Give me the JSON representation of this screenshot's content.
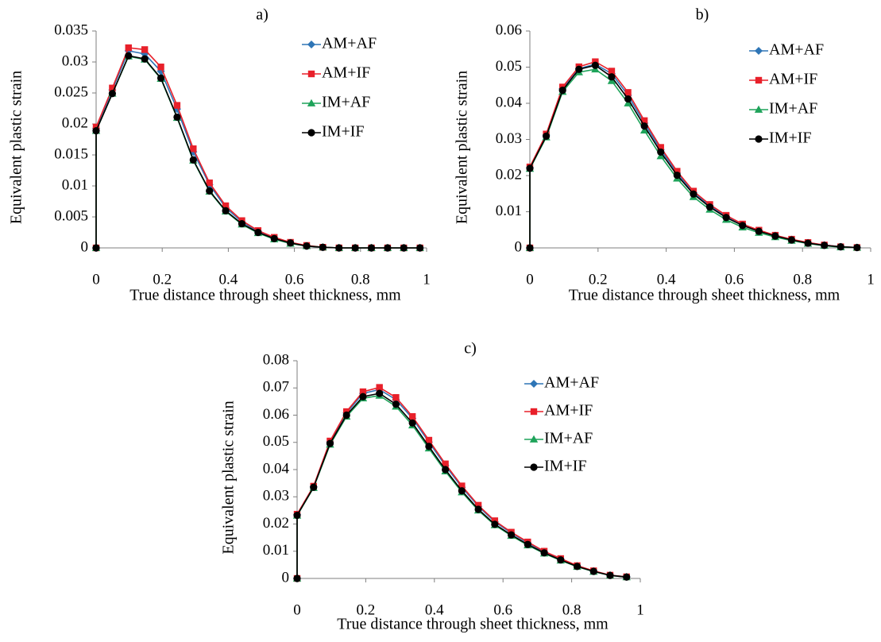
{
  "colors": {
    "AM+AF": "#2e75b6",
    "AM+IF": "#e8202a",
    "IM+AF": "#1ea35a",
    "IM+IF": "#000000"
  },
  "chart_data": [
    {
      "type": "line",
      "title": "a)",
      "xlabel": "True distance through sheet thickness, mm",
      "ylabel": "Equivalent plastic strain",
      "xlim": [
        0,
        1
      ],
      "ylim": [
        0,
        0.035
      ],
      "xticks": [
        "0",
        "0.2",
        "0.4",
        "0.6",
        "0.8",
        "1"
      ],
      "xtick_values": [
        0,
        0.2,
        0.4,
        0.6,
        0.8,
        1
      ],
      "yticks": [
        "0",
        "0.005",
        "0.01",
        "0.015",
        "0.02",
        "0.025",
        "0.03",
        "0.035"
      ],
      "ytick_values": [
        0,
        0.005,
        0.01,
        0.015,
        0.02,
        0.025,
        0.03,
        0.035
      ],
      "grid": false,
      "legend": "top-right",
      "x": [
        0,
        0,
        0.049,
        0.098,
        0.147,
        0.196,
        0.245,
        0.294,
        0.343,
        0.392,
        0.441,
        0.49,
        0.539,
        0.588,
        0.637,
        0.686,
        0.735,
        0.784,
        0.833,
        0.882,
        0.931,
        0.98
      ],
      "series": [
        {
          "name": "AM+AF",
          "marker": "diamond",
          "values": [
            0,
            0.0193,
            0.0255,
            0.0318,
            0.0313,
            0.0285,
            0.0224,
            0.0155,
            0.0102,
            0.0065,
            0.0042,
            0.0027,
            0.0016,
            0.0008,
            0.0003,
            0.0001,
            0,
            0,
            0,
            0,
            0,
            0
          ]
        },
        {
          "name": "AM+IF",
          "marker": "square",
          "values": [
            0,
            0.0195,
            0.0258,
            0.0323,
            0.032,
            0.0292,
            0.023,
            0.016,
            0.0105,
            0.0068,
            0.0044,
            0.0028,
            0.0017,
            0.0009,
            0.0004,
            0.0001,
            0,
            0,
            0,
            0,
            0,
            0
          ]
        },
        {
          "name": "IM+AF",
          "marker": "triangle",
          "values": [
            0,
            0.0189,
            0.0249,
            0.0309,
            0.0304,
            0.0273,
            0.021,
            0.0141,
            0.0091,
            0.0059,
            0.0038,
            0.0024,
            0.0014,
            0.0007,
            0.0003,
            0.0001,
            0,
            0,
            0,
            0,
            0,
            0
          ]
        },
        {
          "name": "IM+IF",
          "marker": "circle",
          "values": [
            0,
            0.0189,
            0.0249,
            0.031,
            0.0305,
            0.0274,
            0.0211,
            0.0142,
            0.0092,
            0.006,
            0.0039,
            0.0025,
            0.0015,
            0.0008,
            0.0003,
            0.0001,
            0,
            0,
            0,
            0,
            0,
            0
          ]
        }
      ]
    },
    {
      "type": "line",
      "title": "b)",
      "xlabel": "True distance through sheet thickness, mm",
      "ylabel": "Equivalent plastic strain",
      "xlim": [
        0,
        1
      ],
      "ylim": [
        0,
        0.06
      ],
      "xticks": [
        "0",
        "0.2",
        "0.4",
        "0.6",
        "0.8",
        "1"
      ],
      "xtick_values": [
        0,
        0.2,
        0.4,
        0.6,
        0.8,
        1
      ],
      "yticks": [
        "0",
        "0.01",
        "0.02",
        "0.03",
        "0.04",
        "0.05",
        "0.06"
      ],
      "ytick_values": [
        0,
        0.01,
        0.02,
        0.03,
        0.04,
        0.05,
        0.06
      ],
      "grid": false,
      "legend": "top-right",
      "x": [
        0,
        0,
        0.048,
        0.096,
        0.144,
        0.192,
        0.24,
        0.288,
        0.336,
        0.384,
        0.432,
        0.48,
        0.528,
        0.576,
        0.624,
        0.672,
        0.72,
        0.768,
        0.816,
        0.864,
        0.912,
        0.96
      ],
      "series": [
        {
          "name": "AM+AF",
          "marker": "diamond",
          "values": [
            0,
            0.0222,
            0.0312,
            0.044,
            0.0496,
            0.0508,
            0.0482,
            0.0422,
            0.0345,
            0.0272,
            0.0207,
            0.0153,
            0.0117,
            0.0087,
            0.0064,
            0.0047,
            0.0034,
            0.0023,
            0.0014,
            0.0008,
            0.0003,
            0.0001
          ]
        },
        {
          "name": "AM+IF",
          "marker": "square",
          "values": [
            0,
            0.0224,
            0.0315,
            0.0445,
            0.0501,
            0.0515,
            0.0489,
            0.043,
            0.0352,
            0.0278,
            0.0212,
            0.0157,
            0.012,
            0.009,
            0.0066,
            0.0049,
            0.0035,
            0.0024,
            0.0015,
            0.0008,
            0.0003,
            0.0001
          ]
        },
        {
          "name": "IM+AF",
          "marker": "triangle",
          "values": [
            0,
            0.0219,
            0.0306,
            0.0432,
            0.0486,
            0.0494,
            0.0462,
            0.04,
            0.0325,
            0.0254,
            0.0192,
            0.0141,
            0.0106,
            0.0078,
            0.0057,
            0.0042,
            0.003,
            0.002,
            0.0012,
            0.0006,
            0.0002,
            0.0001
          ]
        },
        {
          "name": "IM+IF",
          "marker": "circle",
          "values": [
            0,
            0.022,
            0.0309,
            0.0436,
            0.0494,
            0.0505,
            0.0473,
            0.0412,
            0.0337,
            0.0265,
            0.0201,
            0.0149,
            0.0113,
            0.0084,
            0.0062,
            0.0046,
            0.0033,
            0.0022,
            0.0013,
            0.0007,
            0.0003,
            0.0001
          ]
        }
      ]
    },
    {
      "type": "line",
      "title": "c)",
      "xlabel": "True distance through sheet thickness, mm",
      "ylabel": "Equivalent plastic strain",
      "xlim": [
        0,
        1
      ],
      "ylim": [
        0,
        0.08
      ],
      "xticks": [
        "0",
        "0.2",
        "0.4",
        "0.6",
        "0.8",
        "1"
      ],
      "xtick_values": [
        0,
        0.2,
        0.4,
        0.6,
        0.8,
        1
      ],
      "yticks": [
        "0",
        "0.01",
        "0.02",
        "0.03",
        "0.04",
        "0.05",
        "0.06",
        "0.07",
        "0.08"
      ],
      "ytick_values": [
        0,
        0.01,
        0.02,
        0.03,
        0.04,
        0.05,
        0.06,
        0.07,
        0.08
      ],
      "grid": false,
      "legend": "top-right",
      "x": [
        0,
        0,
        0.048,
        0.096,
        0.144,
        0.192,
        0.24,
        0.288,
        0.336,
        0.384,
        0.432,
        0.48,
        0.528,
        0.576,
        0.624,
        0.672,
        0.72,
        0.768,
        0.816,
        0.864,
        0.912,
        0.96
      ],
      "series": [
        {
          "name": "AM+AF",
          "marker": "diamond",
          "values": [
            0,
            0.0235,
            0.0337,
            0.0502,
            0.0608,
            0.068,
            0.0694,
            0.0657,
            0.0588,
            0.0501,
            0.0415,
            0.0335,
            0.0265,
            0.0208,
            0.0167,
            0.0131,
            0.0098,
            0.0071,
            0.0046,
            0.0027,
            0.0012,
            0.0006
          ]
        },
        {
          "name": "AM+IF",
          "marker": "square",
          "values": [
            0,
            0.0236,
            0.0339,
            0.0505,
            0.0613,
            0.0686,
            0.0702,
            0.0665,
            0.0595,
            0.0508,
            0.0421,
            0.034,
            0.0269,
            0.0212,
            0.017,
            0.0134,
            0.01,
            0.0073,
            0.0047,
            0.0028,
            0.0012,
            0.0006
          ]
        },
        {
          "name": "IM+AF",
          "marker": "triangle",
          "values": [
            0,
            0.0231,
            0.0333,
            0.0492,
            0.0595,
            0.0662,
            0.0672,
            0.0632,
            0.0563,
            0.0478,
            0.0394,
            0.0317,
            0.025,
            0.0196,
            0.0157,
            0.0122,
            0.0092,
            0.0066,
            0.0043,
            0.0025,
            0.0011,
            0.0005
          ]
        },
        {
          "name": "IM+IF",
          "marker": "circle",
          "values": [
            0,
            0.0232,
            0.0335,
            0.0496,
            0.06,
            0.0668,
            0.068,
            0.064,
            0.0571,
            0.0485,
            0.04,
            0.0322,
            0.0254,
            0.0199,
            0.016,
            0.0125,
            0.0094,
            0.0068,
            0.0044,
            0.0026,
            0.0011,
            0.0005
          ]
        }
      ]
    }
  ]
}
